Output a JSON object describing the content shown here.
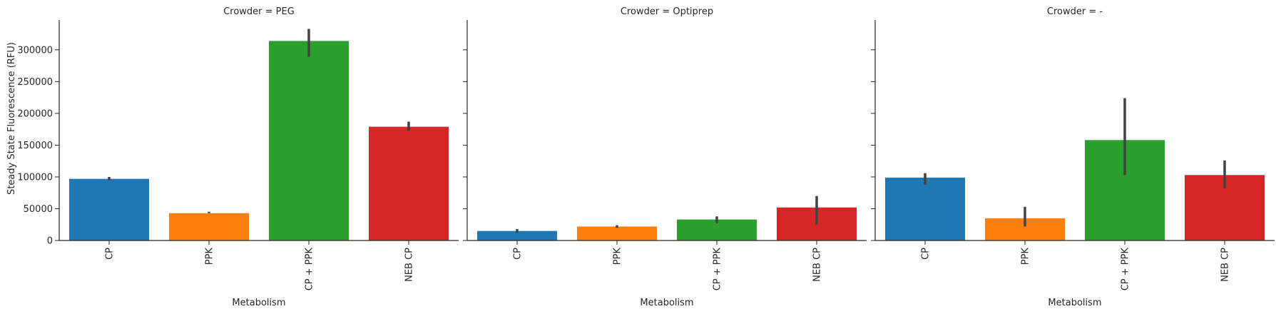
{
  "chart_data": {
    "type": "bar",
    "facet_label": "Crowder",
    "ylabel": "Steady State Fluorescence (RFU)",
    "xlabel": "Metabolism",
    "ylim": [
      0,
      347000
    ],
    "yticks": [
      0,
      50000,
      100000,
      150000,
      200000,
      250000,
      300000
    ],
    "categories": [
      "CP",
      "PPK",
      "CP + PPK",
      "NEB CP"
    ],
    "colors": [
      "#1f77b4",
      "#ff7f0e",
      "#2ca02c",
      "#d62728"
    ],
    "error_color": "#424242",
    "grid": false,
    "facets": [
      {
        "title": "Crowder = PEG",
        "values": [
          97000,
          43000,
          314000,
          179000
        ],
        "err_low": [
          95000,
          43000,
          289000,
          173000
        ],
        "err_high": [
          100000,
          43000,
          333000,
          187000
        ]
      },
      {
        "title": "Crowder = Optiprep",
        "values": [
          15000,
          22000,
          33000,
          52000
        ],
        "err_low": [
          12000,
          20000,
          27000,
          25000
        ],
        "err_high": [
          18000,
          24000,
          38000,
          70000
        ]
      },
      {
        "title": "Crowder = -",
        "values": [
          99000,
          35000,
          158000,
          103000
        ],
        "err_low": [
          88000,
          22000,
          103000,
          82000
        ],
        "err_high": [
          106000,
          53000,
          224000,
          126000
        ]
      }
    ]
  }
}
